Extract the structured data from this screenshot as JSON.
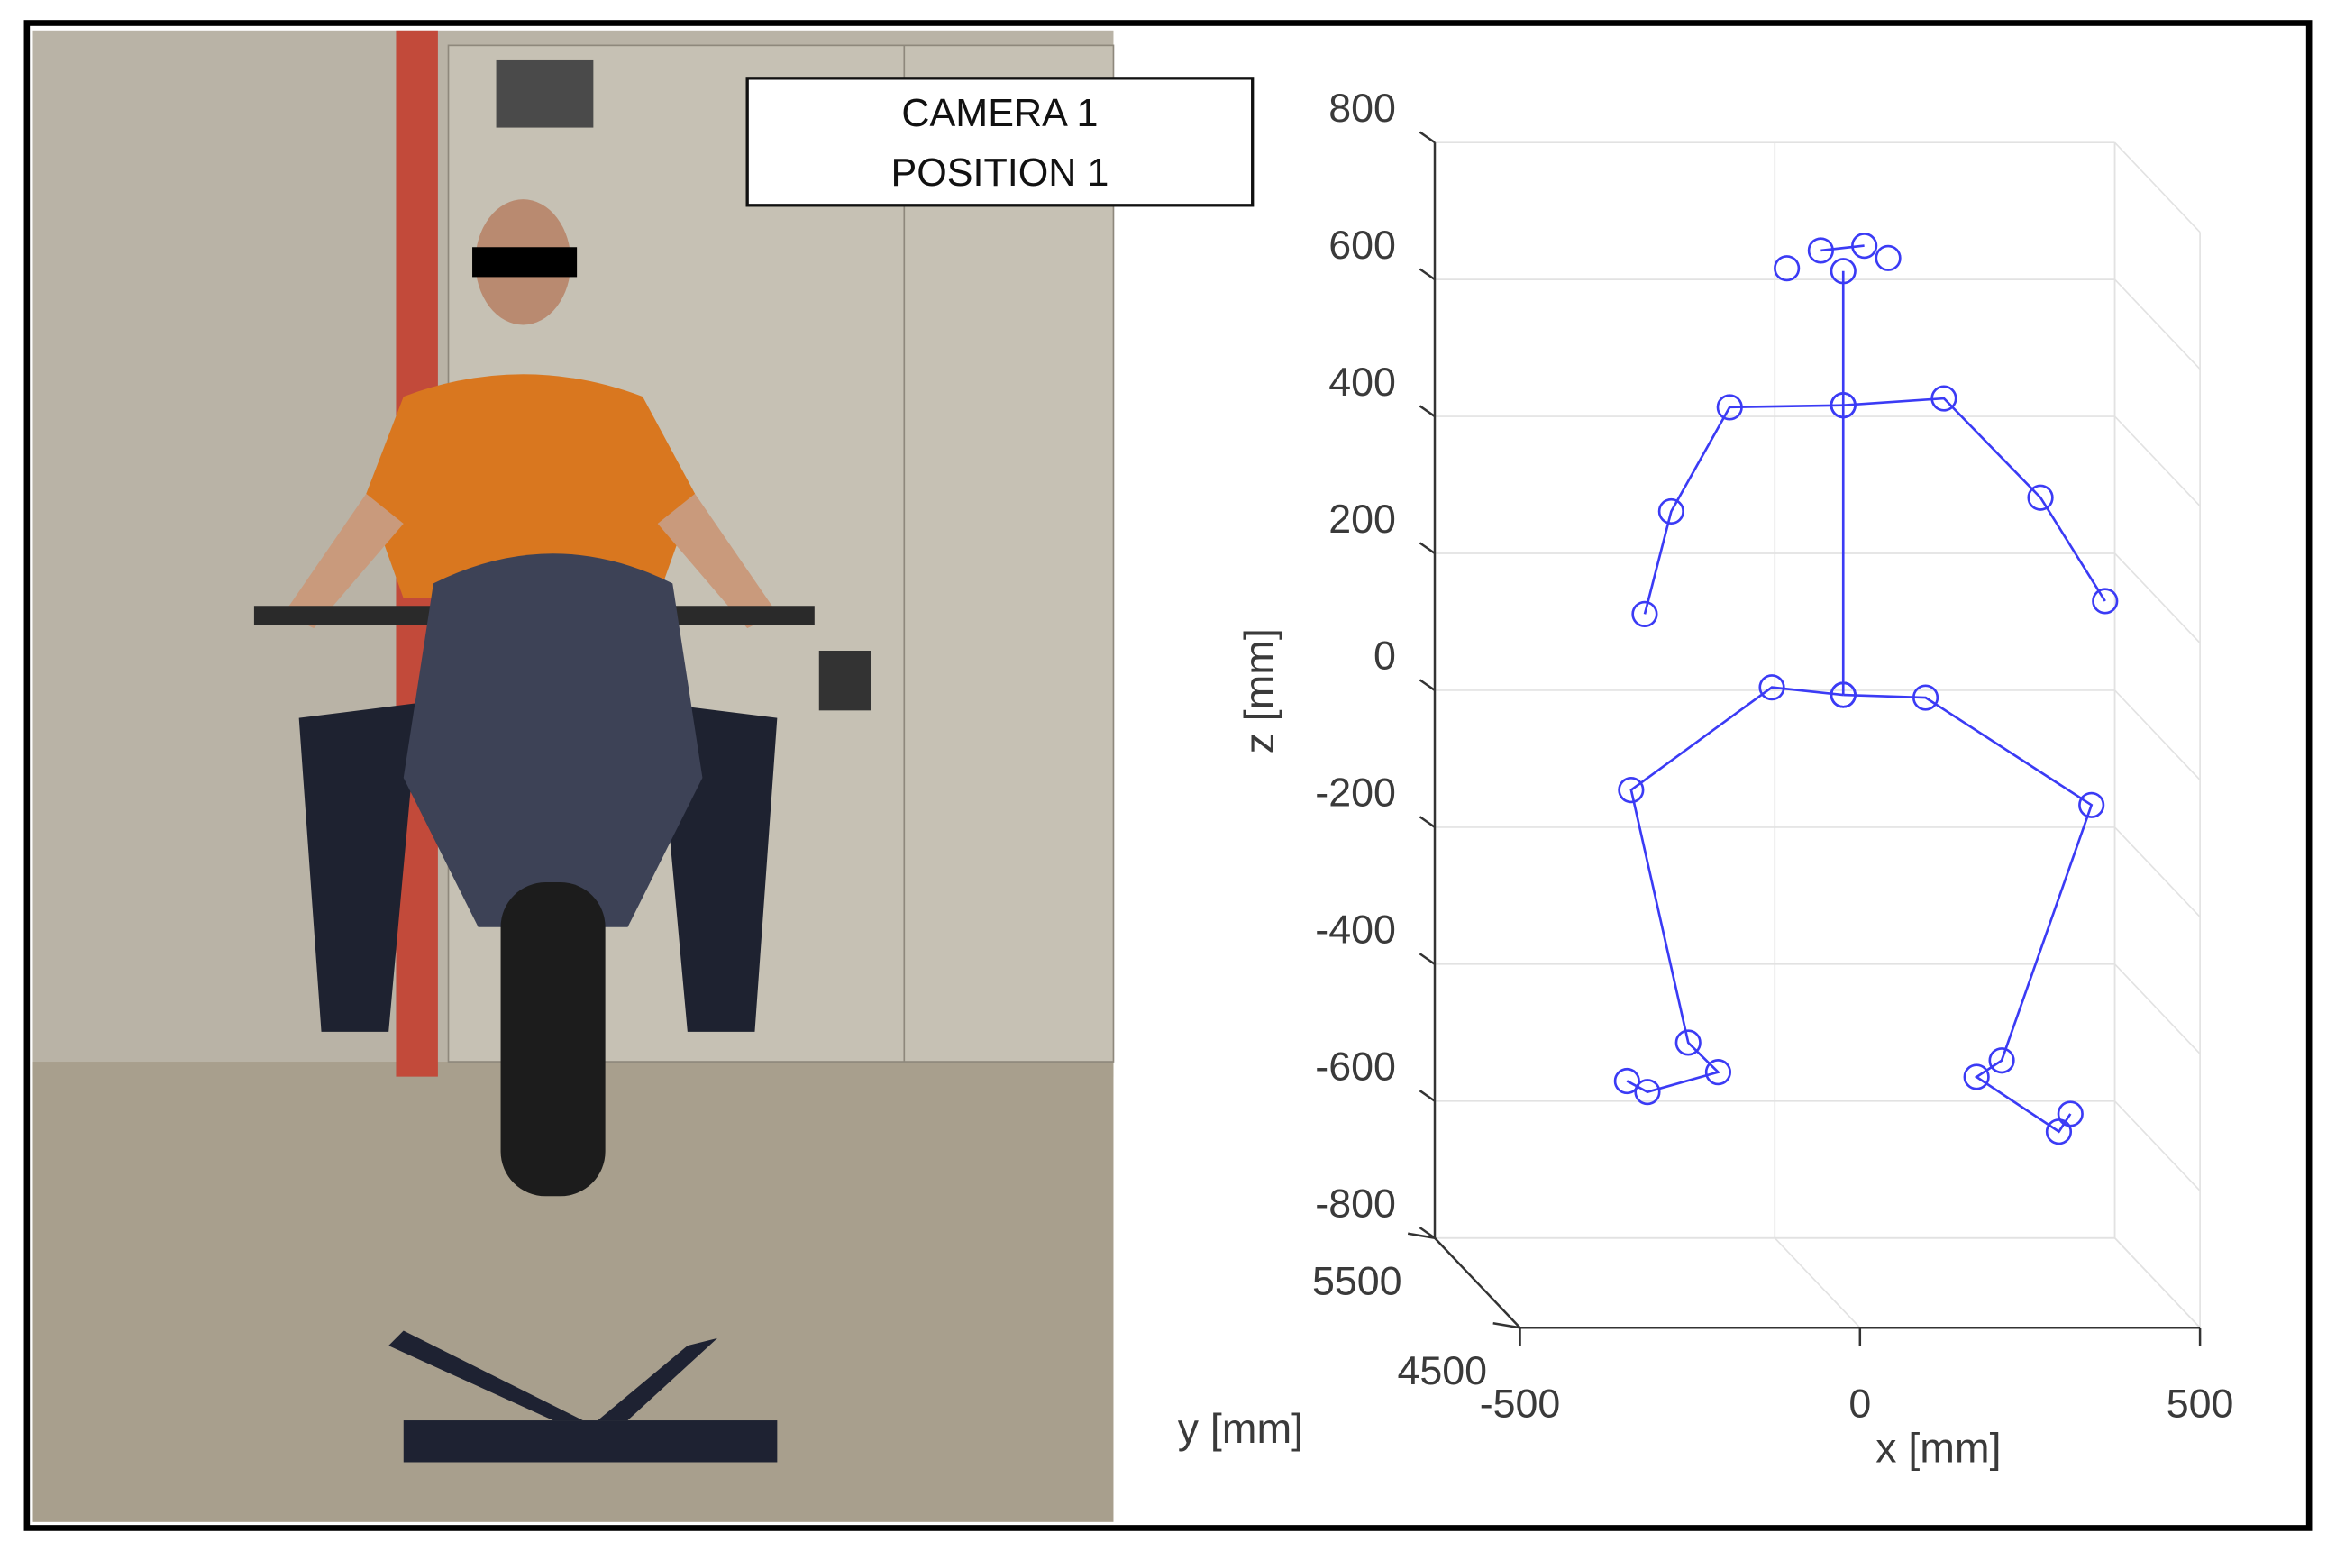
{
  "photo": {
    "caption_lines": [
      "CAMERA 1",
      "POSITION 1"
    ]
  },
  "chart_data": {
    "type": "skeleton3d",
    "color": "#3b3bf5",
    "xlabel": "x [mm]",
    "ylabel": "y [mm]",
    "zlabel": "z [mm]",
    "xlim": [
      -500,
      500
    ],
    "xticks": [
      -500,
      0,
      500
    ],
    "ylim": [
      4500,
      5500
    ],
    "yticks": [
      4500,
      5500
    ],
    "zlim": [
      -800,
      800
    ],
    "zticks": [
      -800,
      -600,
      -400,
      -200,
      0,
      200,
      400,
      600,
      800
    ],
    "grid": true,
    "series": [
      {
        "x": [
          -70,
          null,
          -20,
          44,
          null,
          79
        ],
        "y": [
          4800,
          null,
          4800,
          4800,
          null,
          4800
        ],
        "z": [
          708,
          null,
          734,
          741,
          null,
          723
        ]
      },
      {
        "x": [
          13,
          13,
          13
        ],
        "y": [
          4800,
          4800,
          4800
        ],
        "z": [
          704,
          508,
          85
        ]
      },
      {
        "x": [
          13,
          -154,
          -240,
          -279
        ],
        "y": [
          4800,
          4800,
          4800,
          4800
        ],
        "z": [
          508,
          505,
          353,
          203
        ]
      },
      {
        "x": [
          13,
          161,
          303,
          398
        ],
        "y": [
          4800,
          4800,
          4800,
          4800
        ],
        "z": [
          508,
          518,
          373,
          222
        ]
      },
      {
        "x": [
          13,
          -92,
          -299,
          -215,
          -171,
          -275,
          -305
        ],
        "y": [
          4800,
          4800,
          4800,
          4800,
          4800,
          4800,
          4800
        ],
        "z": [
          85,
          96,
          -54,
          -423,
          -466,
          -495,
          -479
        ]
      },
      {
        "x": [
          13,
          134,
          378,
          246,
          209,
          330,
          347
        ],
        "y": [
          4800,
          4800,
          4800,
          4800,
          4800,
          4800,
          4800
        ],
        "z": [
          85,
          81,
          -76,
          -449,
          -473,
          -553,
          -527
        ]
      }
    ]
  }
}
